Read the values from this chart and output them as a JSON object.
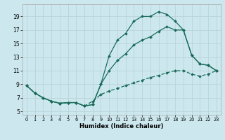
{
  "xlabel": "Humidex (Indice chaleur)",
  "background_color": "#cce8ee",
  "grid_color": "#b8d4d8",
  "line_color": "#1a6b5a",
  "xlim": [
    -0.5,
    23.5
  ],
  "ylim": [
    4.5,
    20.8
  ],
  "xticks": [
    0,
    1,
    2,
    3,
    4,
    5,
    6,
    7,
    8,
    9,
    10,
    11,
    12,
    13,
    14,
    15,
    16,
    17,
    18,
    19,
    20,
    21,
    22,
    23
  ],
  "yticks": [
    5,
    7,
    9,
    11,
    13,
    15,
    17,
    19
  ],
  "line1_x": [
    0,
    1,
    2,
    3,
    4,
    5,
    6,
    7,
    8,
    9,
    10,
    11,
    12,
    13,
    14,
    15,
    16,
    17,
    18,
    19,
    20,
    21,
    22,
    23
  ],
  "line1_y": [
    8.8,
    7.7,
    7.0,
    6.5,
    6.2,
    6.3,
    6.3,
    5.8,
    6.0,
    9.0,
    13.2,
    15.5,
    16.5,
    18.3,
    19.0,
    19.0,
    19.7,
    19.3,
    18.3,
    17.0,
    13.3,
    12.0,
    11.8,
    11.0
  ],
  "line2_x": [
    0,
    1,
    2,
    3,
    4,
    5,
    6,
    7,
    8,
    9,
    10,
    11,
    12,
    13,
    14,
    15,
    16,
    17,
    18,
    19,
    20,
    21,
    22,
    23
  ],
  "line2_y": [
    8.8,
    7.7,
    7.0,
    6.5,
    6.2,
    6.3,
    6.3,
    5.8,
    6.0,
    9.0,
    11.0,
    12.5,
    13.5,
    14.8,
    15.5,
    16.0,
    16.8,
    17.5,
    17.0,
    17.0,
    13.3,
    12.0,
    11.8,
    11.0
  ],
  "line3_x": [
    0,
    1,
    2,
    3,
    4,
    5,
    6,
    7,
    8,
    9,
    10,
    11,
    12,
    13,
    14,
    15,
    16,
    17,
    18,
    19,
    20,
    21,
    22,
    23
  ],
  "line3_y": [
    8.8,
    7.7,
    7.0,
    6.5,
    6.2,
    6.3,
    6.3,
    5.8,
    6.5,
    7.5,
    8.0,
    8.4,
    8.8,
    9.2,
    9.6,
    10.0,
    10.3,
    10.7,
    11.0,
    11.0,
    10.5,
    10.2,
    10.5,
    11.0
  ]
}
